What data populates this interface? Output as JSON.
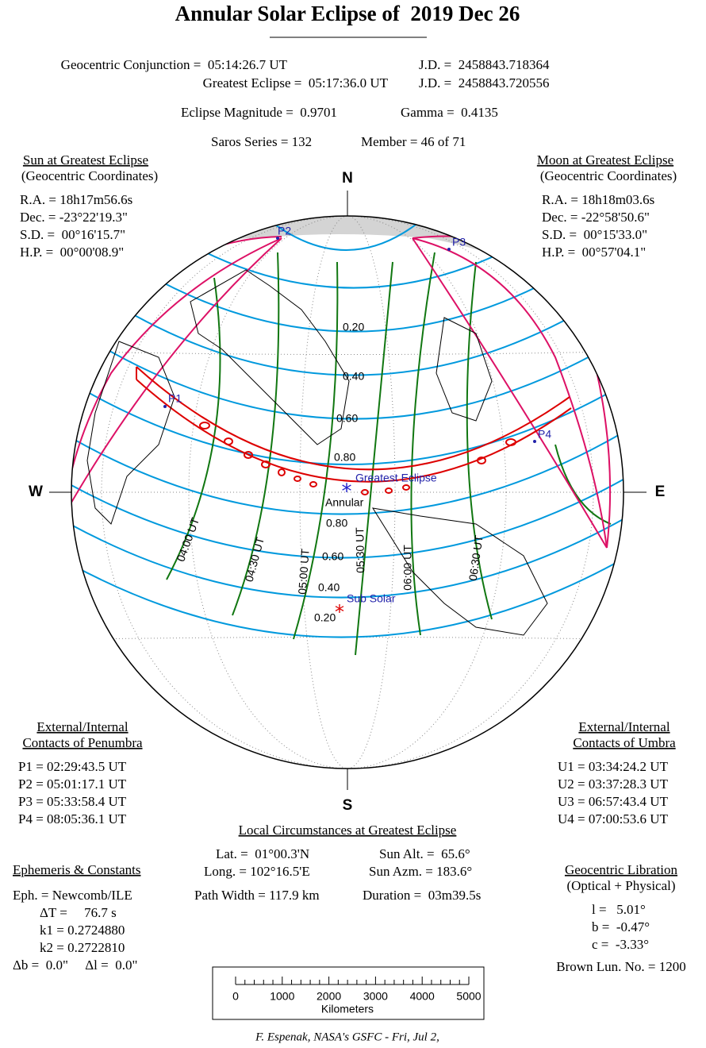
{
  "header": {
    "title": "Annular Solar Eclipse of  2019 Dec 26"
  },
  "summary": {
    "rows": [
      [
        "Geocentric Conjunction =  05:14:26.7 UT",
        "J.D. =  2458843.718364"
      ],
      [
        "Greatest Eclipse =  05:17:36.0 UT",
        "J.D. =  2458843.720556"
      ],
      [
        "Eclipse Magnitude =  0.9701",
        "Gamma =  0.4135"
      ],
      [
        "Saros Series = 132",
        "Member = 46 of 71"
      ]
    ]
  },
  "sun": {
    "title": "Sun at Greatest Eclipse",
    "subtitle": "(Geocentric Coordinates)",
    "lines": [
      "R.A. = 18h17m56.6s",
      "Dec. = -23°22'19.3\"",
      "S.D. =  00°16'15.7\"",
      "H.P. =  00°00'08.9\""
    ]
  },
  "moon": {
    "title": "Moon at Greatest Eclipse",
    "subtitle": "(Geocentric Coordinates)",
    "lines": [
      "R.A. = 18h18m03.6s",
      "Dec. = -22°58'50.6\"",
      "S.D. =  00°15'33.0\"",
      "H.P. =  00°57'04.1\""
    ]
  },
  "map": {
    "north": "N",
    "south": "S",
    "west": "W",
    "east": "E",
    "contacts": [
      "P1",
      "P2",
      "P3",
      "P4"
    ],
    "greatest": "Greatest Eclipse",
    "annular": "Annular",
    "sub_solar": "Sub Solar",
    "magnitudes": [
      "0.20",
      "0.40",
      "0.60",
      "0.80",
      "0.80",
      "0.60",
      "0.40",
      "0.20"
    ],
    "times": [
      "04:00 UT",
      "04:30 UT",
      "05:00 UT",
      "05:30 UT",
      "06:00 UT",
      "06:30 UT"
    ]
  },
  "penumbra": {
    "title": "External/Internal",
    "subtitle": "Contacts of Penumbra",
    "lines": [
      "P1 = 02:29:43.5 UT",
      "P2 = 05:01:17.1 UT",
      "P3 = 05:33:58.4 UT",
      "P4 = 08:05:36.1 UT"
    ]
  },
  "umbra": {
    "title": "External/Internal",
    "subtitle": "Contacts of Umbra",
    "lines": [
      "U1 = 03:34:24.2 UT",
      "U2 = 03:37:28.3 UT",
      "U3 = 06:57:43.4 UT",
      "U4 = 07:00:53.6 UT"
    ]
  },
  "local": {
    "title": "Local Circumstances at Greatest Eclipse",
    "lines": [
      "Lat. =  01°00.3'N",
      "Sun Alt. =  65.6°",
      "Long. = 102°16.5'E",
      "Sun Azm. = 183.6°",
      "Path Width = 117.9 km",
      "Duration =  03m39.5s"
    ]
  },
  "ephemeris": {
    "title": "Ephemeris & Constants",
    "lines": [
      "Eph. = Newcomb/ILE",
      "ΔT =     76.7 s",
      "k1 = 0.2724880",
      "k2 = 0.2722810",
      "Δb =  0.0\"     Δl =  0.0\""
    ]
  },
  "libration": {
    "title": "Geocentric Libration",
    "subtitle": "(Optical + Physical)",
    "lines": [
      "l =   5.01°",
      "b =  -0.47°",
      "c =  -3.33°"
    ],
    "brown": "Brown Lun. No. = 1200"
  },
  "scale": {
    "ticks": [
      0,
      1000,
      2000,
      3000,
      4000,
      5000
    ],
    "label": "Kilometers"
  },
  "footer": {
    "credit": "F. Espenak, NASA's GSFC - Fri, Jul 2,"
  }
}
